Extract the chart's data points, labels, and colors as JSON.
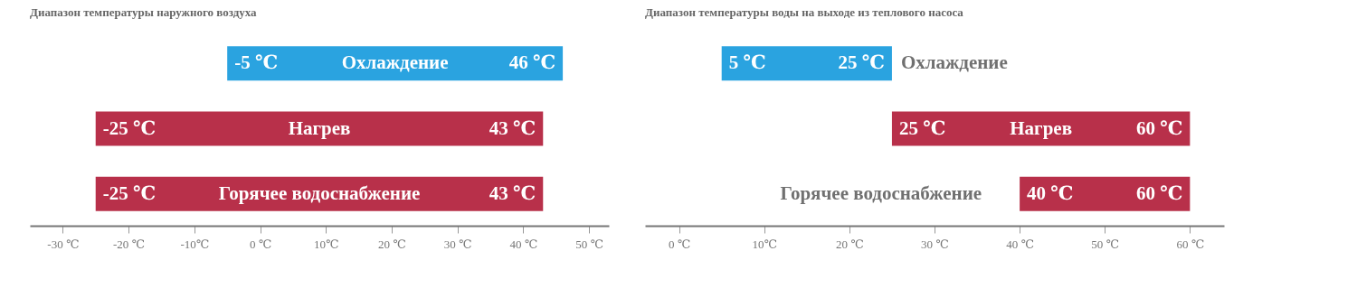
{
  "chart_data": [
    {
      "type": "bar",
      "orientation": "horizontal",
      "title": "Диапазон температуры наружного воздуха",
      "categories": [
        "Охлаждение",
        "Нагрев",
        "Горячее водоснабжение"
      ],
      "base": [
        -5,
        -25,
        -25
      ],
      "values": [
        51,
        68,
        68
      ],
      "colors": [
        "#2aa3e0",
        "#b8304a",
        "#b8304a"
      ],
      "xlim": [
        -35,
        53
      ],
      "xticks": [
        {
          "value": -30,
          "label": "-30 ℃"
        },
        {
          "value": -20,
          "label": "-20 ℃"
        },
        {
          "value": -10,
          "label": "-10℃"
        },
        {
          "value": 0,
          "label": "0 ℃"
        },
        {
          "value": 10,
          "label": "10℃"
        },
        {
          "value": 20,
          "label": "20 ℃"
        },
        {
          "value": 30,
          "label": "30 ℃"
        },
        {
          "value": 40,
          "label": "40 ℃"
        },
        {
          "value": 50,
          "label": "50 ℃"
        }
      ],
      "tick_labels": "x",
      "annotations": [
        {
          "text": "-5 ℃",
          "x": -5,
          "y": "Охлаждение"
        },
        {
          "text": "46 ℃",
          "x": 46,
          "y": "Охлаждение"
        },
        {
          "text": "-25 ℃",
          "x": -25,
          "y": "Нагрев"
        },
        {
          "text": "43 ℃",
          "x": 43,
          "y": "Нагрев"
        },
        {
          "text": "-25 ℃",
          "x": -25,
          "y": "Горячее водоснабжение"
        },
        {
          "text": "43 ℃",
          "x": 43,
          "y": "Горячее водоснабжение"
        }
      ]
    },
    {
      "type": "bar",
      "orientation": "horizontal",
      "title": "Диапазон температуры воды на выходе из теплового насоса",
      "categories": [
        "Охлаждение",
        "Нагрев",
        "Горячее водоснабжение"
      ],
      "base": [
        5,
        25,
        40
      ],
      "values": [
        20,
        35,
        20
      ],
      "colors": [
        "#2aa3e0",
        "#b8304a",
        "#b8304a"
      ],
      "xlim": [
        -4,
        64
      ],
      "xticks": [
        {
          "value": 0,
          "label": "0 ℃"
        },
        {
          "value": 10,
          "label": "10℃"
        },
        {
          "value": 20,
          "label": "20 ℃"
        },
        {
          "value": 30,
          "label": "30 ℃"
        },
        {
          "value": 40,
          "label": "40 ℃"
        },
        {
          "value": 50,
          "label": "50 ℃"
        },
        {
          "value": 60,
          "label": "60 ℃"
        }
      ],
      "tick_labels": "x",
      "annotations": [
        {
          "text": "5 ℃",
          "x": 5,
          "y": "Охлаждение"
        },
        {
          "text": "25 ℃",
          "x": 25,
          "y": "Охлаждение"
        },
        {
          "text": "25 ℃",
          "x": 25,
          "y": "Нагрев"
        },
        {
          "text": "60 ℃",
          "x": 60,
          "y": "Нагрев"
        },
        {
          "text": "40 ℃",
          "x": 40,
          "y": "Горячее водоснабжение"
        },
        {
          "text": "60 ℃",
          "x": 60,
          "y": "Горячее водоснабжение"
        }
      ]
    }
  ]
}
